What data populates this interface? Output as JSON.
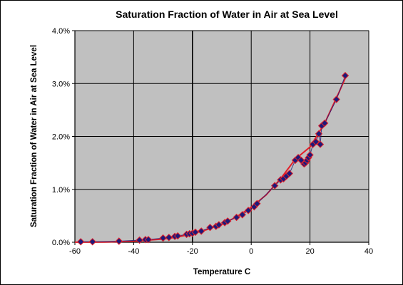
{
  "chart_data": {
    "type": "scatter",
    "title": "Saturation Fraction of Water in Air at Sea Level",
    "xlabel": "Temperature C",
    "ylabel": "Saturation Fraction of Water in Air at Sea Level",
    "xlim": [
      -60,
      40
    ],
    "ylim": [
      0.0,
      4.0
    ],
    "x_ticks": [
      -60,
      -40,
      -20,
      0,
      20,
      40
    ],
    "x_tick_labels": [
      "-60",
      "-40",
      "-20",
      "0",
      "20",
      "40"
    ],
    "y_ticks": [
      0.0,
      1.0,
      2.0,
      3.0,
      4.0
    ],
    "y_tick_labels": [
      "0.0%",
      "1.0%",
      "2.0%",
      "3.0%",
      "4.0%"
    ],
    "y_unit": "percent",
    "grid": true,
    "legend": "none",
    "colors": {
      "plot_background": "#c0c0c0",
      "gridline": "#000000",
      "marker_fill": "#1c1a7a",
      "marker_edge": "#e2202a",
      "fit_line": "#e2202a",
      "data_line": "#1c1a7a"
    },
    "series": [
      {
        "marker": "diamond",
        "x": [
          -58,
          -54,
          -45,
          -38,
          -36,
          -35,
          -30,
          -28,
          -26,
          -25,
          -22,
          -21,
          -20,
          -19,
          -17,
          -14,
          -12,
          -11,
          -9,
          -8,
          -5,
          -3,
          -1,
          1,
          2,
          8,
          10,
          11,
          12,
          13,
          15,
          16,
          17,
          18,
          18.5,
          19,
          19.5,
          20,
          21,
          22,
          23,
          23.5,
          24,
          25,
          29,
          32
        ],
        "y": [
          0.01,
          0.01,
          0.02,
          0.04,
          0.05,
          0.05,
          0.08,
          0.09,
          0.11,
          0.12,
          0.15,
          0.16,
          0.17,
          0.19,
          0.21,
          0.28,
          0.3,
          0.33,
          0.37,
          0.4,
          0.47,
          0.52,
          0.6,
          0.67,
          0.73,
          1.07,
          1.18,
          1.2,
          1.25,
          1.3,
          1.55,
          1.6,
          1.55,
          1.48,
          1.5,
          1.55,
          1.6,
          1.65,
          1.85,
          1.9,
          2.05,
          1.85,
          2.2,
          2.25,
          2.7,
          3.15
        ]
      }
    ],
    "fit_curve": {
      "x": [
        -60,
        -55,
        -50,
        -45,
        -40,
        -35,
        -30,
        -25,
        -20,
        -15,
        -10,
        -5,
        0,
        5,
        10,
        15,
        20,
        25,
        30,
        32
      ],
      "y": [
        0.001,
        0.002,
        0.004,
        0.01,
        0.02,
        0.04,
        0.06,
        0.1,
        0.16,
        0.24,
        0.34,
        0.48,
        0.66,
        0.89,
        1.2,
        1.57,
        1.8,
        2.25,
        2.85,
        3.1
      ]
    }
  }
}
